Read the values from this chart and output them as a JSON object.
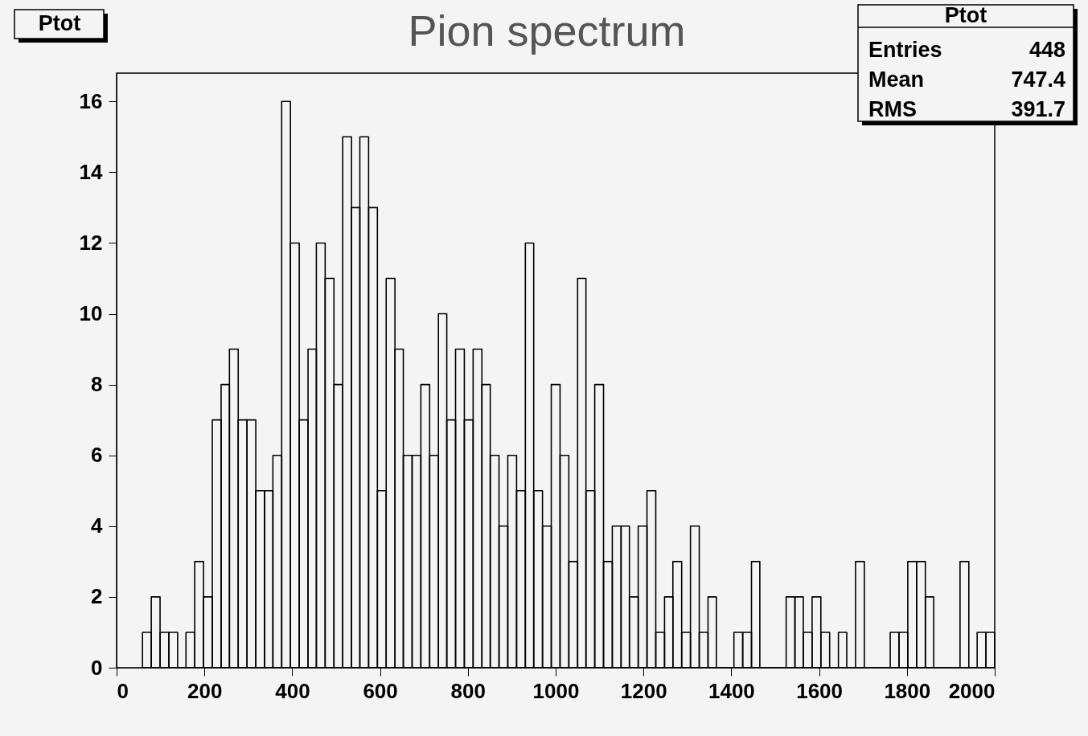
{
  "chart_data": {
    "type": "histogram",
    "title": "Pion spectrum",
    "bins": [
      59,
      79,
      99,
      119,
      139,
      158,
      178,
      198,
      218,
      238,
      257,
      277,
      297,
      317,
      337,
      356,
      376,
      396,
      416,
      436,
      455,
      475,
      495,
      515,
      535,
      554,
      574,
      594,
      614,
      634,
      653,
      673,
      693,
      713,
      733,
      752,
      772,
      792,
      812,
      832,
      851,
      871,
      891,
      911,
      931,
      950,
      970,
      990,
      1010,
      1030,
      1050,
      1069,
      1089,
      1109,
      1129,
      1149,
      1168,
      1188,
      1208,
      1228,
      1248,
      1267,
      1287,
      1307,
      1327,
      1347,
      1366,
      1386,
      1406,
      1426,
      1446,
      1465,
      1485,
      1505,
      1525,
      1545,
      1564,
      1584,
      1604,
      1624,
      1644,
      1663,
      1683,
      1703,
      1723,
      1743,
      1762,
      1782,
      1802,
      1822,
      1842,
      1861,
      1881,
      1901,
      1921,
      1941,
      1960,
      1980,
      2000
    ],
    "values": [
      1,
      2,
      1,
      1,
      0,
      1,
      3,
      2,
      7,
      8,
      9,
      7,
      7,
      5,
      5,
      6,
      16,
      12,
      7,
      9,
      12,
      11,
      8,
      15,
      13,
      15,
      13,
      5,
      11,
      9,
      6,
      6,
      8,
      6,
      10,
      7,
      9,
      7,
      9,
      8,
      6,
      4,
      6,
      5,
      12,
      5,
      4,
      8,
      6,
      3,
      11,
      5,
      8,
      3,
      4,
      4,
      2,
      4,
      5,
      1,
      2,
      3,
      1,
      4,
      1,
      2,
      0,
      0,
      1,
      1,
      3,
      0,
      0,
      0,
      2,
      2,
      1,
      2,
      1,
      0,
      1,
      0,
      3,
      0,
      0,
      0,
      1,
      1,
      3,
      3,
      2,
      0,
      0,
      0,
      3,
      0,
      1,
      1
    ],
    "color": "#000000",
    "xlim": [
      0,
      2000
    ],
    "xticks": [
      0,
      200,
      400,
      600,
      800,
      1000,
      1200,
      1400,
      1600,
      1800,
      2000
    ],
    "ylim": [
      0,
      16.8
    ],
    "yticks": [
      0,
      2,
      4,
      6,
      8,
      10,
      12,
      14,
      16
    ],
    "grid": false,
    "annotations": [
      "Ptot",
      "Ptot",
      "Entries",
      "448",
      "Mean",
      "747.4",
      "RMS",
      "391.7"
    ]
  }
}
